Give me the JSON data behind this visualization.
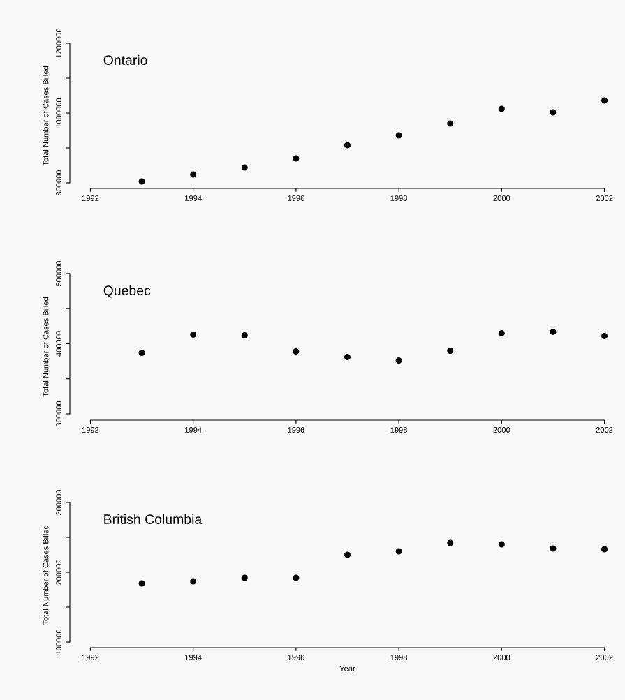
{
  "chart_data": [
    {
      "type": "scatter",
      "title": "Ontario",
      "ylabel": "Total Number of Cases Billed",
      "x": [
        1993,
        1994,
        1995,
        1996,
        1997,
        1998,
        1999,
        2000,
        2001,
        2002
      ],
      "values": [
        804000,
        824000,
        844000,
        870000,
        908000,
        936000,
        970000,
        1012000,
        1002000,
        1036000
      ],
      "color": "#000000",
      "marker": "circle",
      "xlim": [
        1991.6,
        2002.4
      ],
      "xticks": [
        1992,
        1994,
        1996,
        1998,
        2000,
        2002
      ],
      "ylim": [
        784000,
        1200000
      ],
      "yticks": [
        800000,
        {
          "value": 900000,
          "label": null
        },
        1000000,
        {
          "value": 1100000,
          "label": null
        },
        1200000
      ],
      "grid": false,
      "legend": false
    },
    {
      "type": "scatter",
      "title": "Quebec",
      "ylabel": "Total Number of Cases Billed",
      "x": [
        1993,
        1994,
        1995,
        1996,
        1997,
        1998,
        1999,
        2000,
        2001,
        2002
      ],
      "values": [
        387000,
        413000,
        412000,
        389000,
        381000,
        376000,
        390000,
        415000,
        417000,
        411000
      ],
      "color": "#000000",
      "marker": "circle",
      "xlim": [
        1991.6,
        2002.4
      ],
      "xticks": [
        1992,
        1994,
        1996,
        1998,
        2000,
        2002
      ],
      "ylim": [
        291000,
        500000
      ],
      "yticks": [
        300000,
        {
          "value": 350000,
          "label": null
        },
        400000,
        {
          "value": 450000,
          "label": null
        },
        500000
      ],
      "grid": false,
      "legend": false
    },
    {
      "type": "scatter",
      "title": "British Columbia",
      "ylabel": "Total Number of Cases Billed",
      "xlabel": "Year",
      "x": [
        1993,
        1994,
        1995,
        1996,
        1997,
        1998,
        1999,
        2000,
        2001,
        2002
      ],
      "values": [
        184000,
        187000,
        192000,
        192000,
        225000,
        230000,
        242000,
        240000,
        234000,
        233000
      ],
      "color": "#000000",
      "marker": "circle",
      "xlim": [
        1991.6,
        2002.4
      ],
      "xticks": [
        1992,
        1994,
        1996,
        1998,
        2000,
        2002
      ],
      "ylim": [
        92000,
        300000
      ],
      "yticks": [
        100000,
        {
          "value": 150000,
          "label": null
        },
        200000,
        {
          "value": 250000,
          "label": null
        },
        300000
      ],
      "grid": false,
      "legend": false
    }
  ]
}
